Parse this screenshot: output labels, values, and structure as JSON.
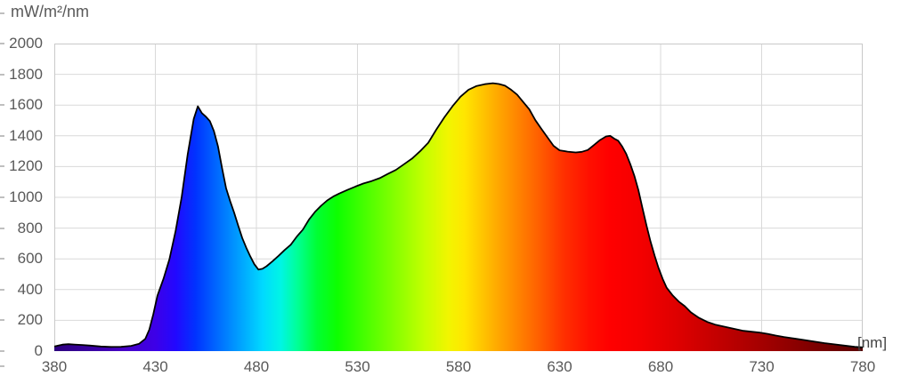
{
  "colors": {
    "background": "#ffffff",
    "text": "#595959",
    "unit_text": "#444444",
    "gridline": "#D9D9D9",
    "plot_border": "#C9C9C9",
    "tick_mark": "#BFBFBF",
    "curve_stroke": "#000000"
  },
  "chart_data": {
    "type": "area",
    "title": "mW/m²/nm",
    "ylabel": "mW/m²/nm",
    "xlabel": "[nm]",
    "xlim": [
      380,
      780
    ],
    "ylim": [
      0,
      2000
    ],
    "x_ticks": [
      380,
      430,
      480,
      530,
      580,
      630,
      680,
      730,
      780
    ],
    "y_ticks": [
      0,
      200,
      400,
      600,
      800,
      1000,
      1200,
      1400,
      1600,
      1800,
      2000
    ],
    "grid": true,
    "legend": "none",
    "fill_style": "visible-spectrum horizontal gradient mapped to wavelength",
    "extra_left_edge_tick_ys": [
      14,
      411
    ],
    "gradient_stops": [
      [
        380,
        "#2D007E"
      ],
      [
        400,
        "#3A00A5"
      ],
      [
        415,
        "#4700C8"
      ],
      [
        430,
        "#3D00E8"
      ],
      [
        440,
        "#2208FF"
      ],
      [
        450,
        "#0033FF"
      ],
      [
        460,
        "#0066FF"
      ],
      [
        472,
        "#00A2FF"
      ],
      [
        483,
        "#00D9FF"
      ],
      [
        492,
        "#00F5E5"
      ],
      [
        500,
        "#00FF99"
      ],
      [
        510,
        "#00FF33"
      ],
      [
        520,
        "#0DFF00"
      ],
      [
        535,
        "#4DFF00"
      ],
      [
        550,
        "#8CFF00"
      ],
      [
        563,
        "#C4FF00"
      ],
      [
        575,
        "#F2F500"
      ],
      [
        583,
        "#FFE600"
      ],
      [
        592,
        "#FFC400"
      ],
      [
        600,
        "#FFA600"
      ],
      [
        610,
        "#FF8200"
      ],
      [
        620,
        "#FF5E00"
      ],
      [
        632,
        "#FF3000"
      ],
      [
        645,
        "#FF0F00"
      ],
      [
        655,
        "#FF0000"
      ],
      [
        670,
        "#F40000"
      ],
      [
        690,
        "#DC0000"
      ],
      [
        710,
        "#C00000"
      ],
      [
        730,
        "#A40000"
      ],
      [
        750,
        "#860000"
      ],
      [
        765,
        "#700000"
      ],
      [
        780,
        "#5C0000"
      ]
    ],
    "points": [
      [
        380,
        30
      ],
      [
        382,
        36
      ],
      [
        384,
        42
      ],
      [
        387,
        45
      ],
      [
        390,
        43
      ],
      [
        394,
        40
      ],
      [
        398,
        36
      ],
      [
        403,
        30
      ],
      [
        408,
        27
      ],
      [
        413,
        28
      ],
      [
        418,
        34
      ],
      [
        422,
        48
      ],
      [
        425,
        80
      ],
      [
        427,
        140
      ],
      [
        429,
        240
      ],
      [
        431,
        360
      ],
      [
        434,
        470
      ],
      [
        437,
        600
      ],
      [
        440,
        780
      ],
      [
        443,
        1000
      ],
      [
        446,
        1280
      ],
      [
        449,
        1510
      ],
      [
        451,
        1592
      ],
      [
        453,
        1548
      ],
      [
        455,
        1524
      ],
      [
        457,
        1495
      ],
      [
        459,
        1430
      ],
      [
        461,
        1330
      ],
      [
        463,
        1190
      ],
      [
        465,
        1060
      ],
      [
        467,
        975
      ],
      [
        469,
        900
      ],
      [
        471,
        815
      ],
      [
        473,
        735
      ],
      [
        475,
        672
      ],
      [
        477,
        615
      ],
      [
        479,
        565
      ],
      [
        481,
        530
      ],
      [
        483,
        535
      ],
      [
        485,
        552
      ],
      [
        488,
        585
      ],
      [
        491,
        620
      ],
      [
        494,
        658
      ],
      [
        497,
        692
      ],
      [
        500,
        745
      ],
      [
        503,
        790
      ],
      [
        506,
        855
      ],
      [
        509,
        905
      ],
      [
        512,
        945
      ],
      [
        515,
        980
      ],
      [
        518,
        1005
      ],
      [
        521,
        1025
      ],
      [
        525,
        1048
      ],
      [
        529,
        1070
      ],
      [
        533,
        1090
      ],
      [
        537,
        1106
      ],
      [
        541,
        1125
      ],
      [
        545,
        1152
      ],
      [
        549,
        1178
      ],
      [
        553,
        1215
      ],
      [
        557,
        1252
      ],
      [
        561,
        1300
      ],
      [
        565,
        1355
      ],
      [
        569,
        1440
      ],
      [
        573,
        1520
      ],
      [
        577,
        1592
      ],
      [
        581,
        1655
      ],
      [
        585,
        1700
      ],
      [
        589,
        1724
      ],
      [
        593,
        1736
      ],
      [
        597,
        1742
      ],
      [
        600,
        1737
      ],
      [
        603,
        1726
      ],
      [
        606,
        1700
      ],
      [
        609,
        1668
      ],
      [
        612,
        1620
      ],
      [
        615,
        1572
      ],
      [
        618,
        1502
      ],
      [
        621,
        1445
      ],
      [
        624,
        1390
      ],
      [
        627,
        1335
      ],
      [
        630,
        1306
      ],
      [
        634,
        1297
      ],
      [
        638,
        1292
      ],
      [
        641,
        1296
      ],
      [
        644,
        1308
      ],
      [
        647,
        1340
      ],
      [
        650,
        1372
      ],
      [
        653,
        1396
      ],
      [
        655,
        1400
      ],
      [
        657,
        1382
      ],
      [
        659,
        1368
      ],
      [
        661,
        1330
      ],
      [
        663,
        1282
      ],
      [
        665,
        1215
      ],
      [
        667,
        1140
      ],
      [
        669,
        1048
      ],
      [
        671,
        930
      ],
      [
        673,
        818
      ],
      [
        675,
        712
      ],
      [
        677,
        622
      ],
      [
        679,
        540
      ],
      [
        681,
        470
      ],
      [
        683,
        412
      ],
      [
        686,
        362
      ],
      [
        689,
        322
      ],
      [
        692,
        292
      ],
      [
        695,
        252
      ],
      [
        699,
        216
      ],
      [
        703,
        190
      ],
      [
        707,
        172
      ],
      [
        712,
        158
      ],
      [
        717,
        143
      ],
      [
        721,
        132
      ],
      [
        725,
        126
      ],
      [
        729,
        121
      ],
      [
        733,
        112
      ],
      [
        737,
        101
      ],
      [
        741,
        92
      ],
      [
        746,
        82
      ],
      [
        751,
        72
      ],
      [
        756,
        62
      ],
      [
        761,
        52
      ],
      [
        766,
        44
      ],
      [
        771,
        36
      ],
      [
        776,
        28
      ],
      [
        780,
        24
      ]
    ]
  }
}
